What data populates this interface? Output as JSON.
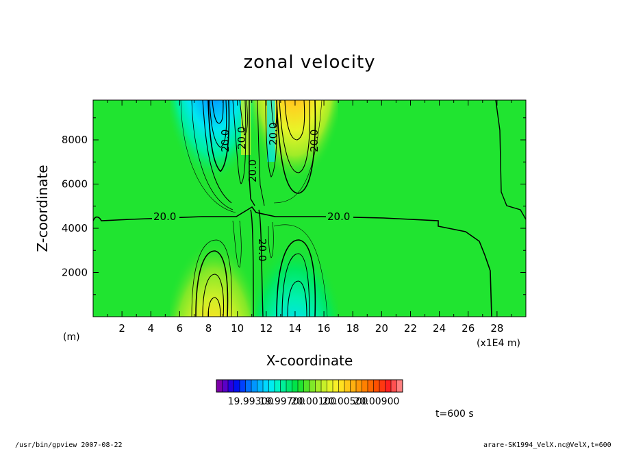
{
  "chart_data": {
    "type": "heatmap",
    "title": "zonal velocity",
    "xlabel": "X-coordinate",
    "ylabel": "Z-coordinate",
    "x_unit": "(m)",
    "x_scale_note": "(x1E4 m)",
    "xlim": [
      0,
      30
    ],
    "ylim": [
      0,
      9800
    ],
    "xticks": [
      2,
      4,
      6,
      8,
      10,
      12,
      14,
      16,
      18,
      20,
      22,
      24,
      26,
      28
    ],
    "yticks": [
      2000,
      4000,
      6000,
      8000
    ],
    "contour_labels": [
      "20.0",
      "20.0",
      "20.0",
      "20.0",
      "20.0",
      "20.0",
      "20.0",
      "20.0"
    ],
    "features": [
      {
        "x": 8.4,
        "z": 8700,
        "kind": "min",
        "value": 19.9931
      },
      {
        "x": 13.9,
        "z": 8700,
        "kind": "max",
        "value": 20.009
      },
      {
        "x": 8.4,
        "z": 1000,
        "kind": "max",
        "value": 20.005
      },
      {
        "x": 13.9,
        "z": 1000,
        "kind": "min",
        "value": 19.9972
      }
    ],
    "background_value": 20.0,
    "colorbar": {
      "tick_labels": [
        "19.99300",
        "19.99700",
        "20.00100",
        "20.00500",
        "20.00900"
      ],
      "colors": [
        "#7d00a8",
        "#5a00c8",
        "#2800e0",
        "#0010f0",
        "#0040ff",
        "#0070ff",
        "#0096ff",
        "#00b8ff",
        "#00d8ff",
        "#00ecf0",
        "#00f5c8",
        "#00f098",
        "#00e870",
        "#00e448",
        "#20e430",
        "#50e428",
        "#80e828",
        "#a8ec28",
        "#c8f028",
        "#e4f428",
        "#f8f028",
        "#ffe020",
        "#ffc818",
        "#ffb010",
        "#ff9808",
        "#ff8000",
        "#ff6800",
        "#ff5000",
        "#ff3810",
        "#ff2020",
        "#ff5050",
        "#ff8080"
      ]
    }
  },
  "time_label": "t=600 s",
  "footer_left": "/usr/bin/gpview   2007-08-22",
  "footer_right": "arare-SK1994_VelX.nc@VelX,t=600"
}
